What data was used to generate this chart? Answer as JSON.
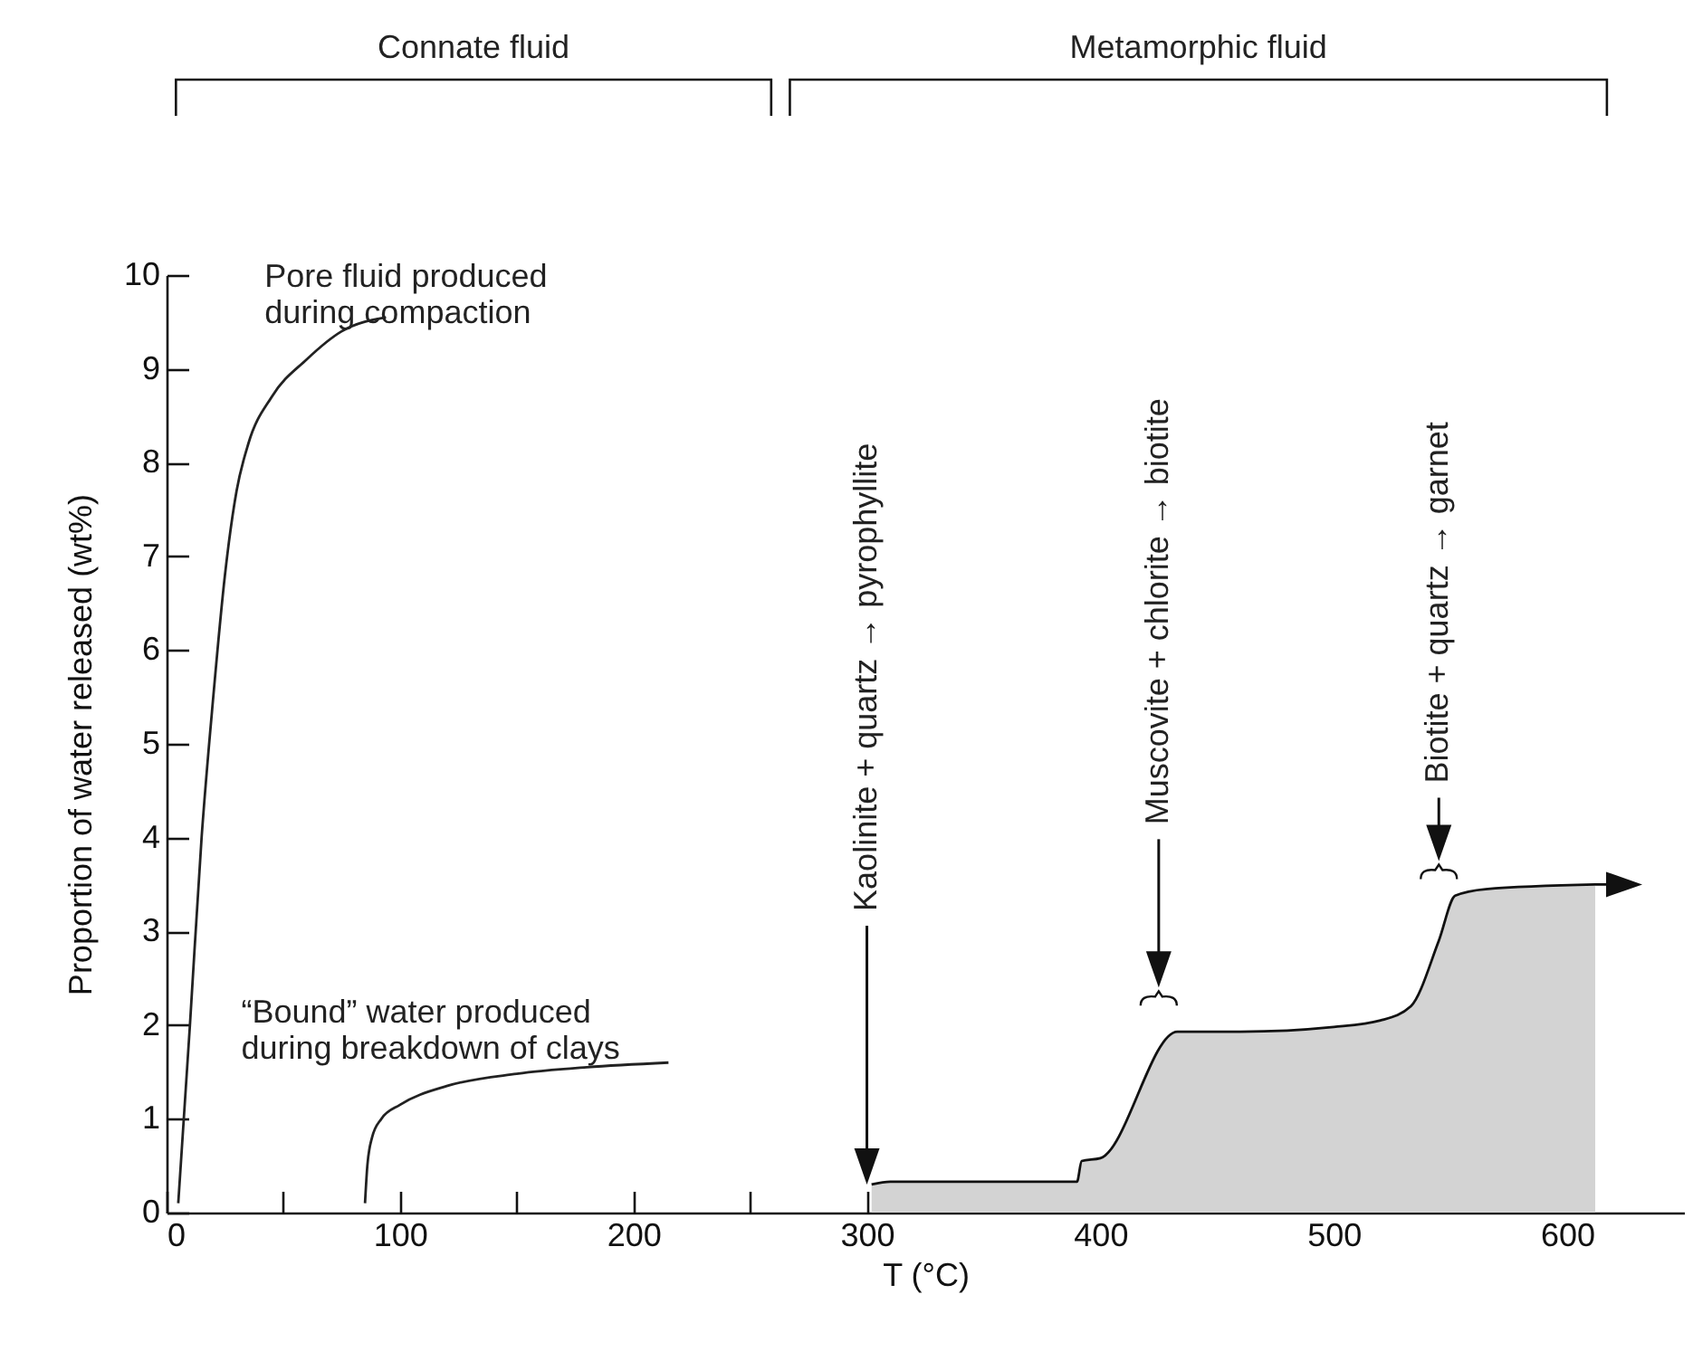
{
  "chart_data": {
    "type": "line",
    "xlabel": "T (°C)",
    "ylabel": "Proportion of water released (wt%)",
    "xlim": [
      0,
      650
    ],
    "ylim": [
      0,
      10
    ],
    "xticks": [
      0,
      {
        "value": 50,
        "label": null
      },
      100,
      {
        "value": 150,
        "label": null
      },
      200,
      {
        "value": 250,
        "label": null
      },
      300,
      {
        "value": 350,
        "label": null
      },
      400,
      {
        "value": 450,
        "label": null
      },
      500,
      {
        "value": 550,
        "label": null
      },
      600
    ],
    "yticks": [
      0,
      1,
      2,
      3,
      4,
      5,
      6,
      7,
      8,
      9,
      10
    ],
    "series": [
      {
        "color": "#222222",
        "x": [
          5,
          10,
          15,
          20,
          25,
          30,
          35,
          45,
          60,
          75,
          94
        ],
        "values": [
          0.1,
          2,
          4,
          5.5,
          6.8,
          7.7,
          8.2,
          8.7,
          9.1,
          9.4,
          9.55
        ]
      },
      {
        "color": "#222222",
        "x": [
          85,
          86,
          88,
          92,
          100,
          120,
          150,
          180,
          215
        ],
        "values": [
          0.1,
          0.5,
          0.8,
          1.0,
          1.15,
          1.35,
          1.48,
          1.55,
          1.6
        ]
      },
      {
        "type": "area",
        "color": "#d3d3d3",
        "x": [
          302,
          310,
          390,
          392,
          400,
          433,
          460,
          500,
          520,
          533,
          545,
          552,
          565,
          612
        ],
        "values": [
          0.3,
          0.33,
          0.33,
          0.55,
          0.58,
          1.93,
          1.93,
          1.98,
          2.05,
          2.2,
          2.9,
          3.38,
          3.45,
          3.5
        ]
      }
    ],
    "annotations": [
      "Connate fluid",
      "Metamorphic fluid",
      "Pore fluid produced\nduring compaction",
      "“Bound”  water produced\nduring breakdown of clays",
      "Kaolinite + quartz → pyrophyllite",
      "Muscovite + chlorite → biotite",
      "Biotite + quartz → garnet"
    ]
  }
}
